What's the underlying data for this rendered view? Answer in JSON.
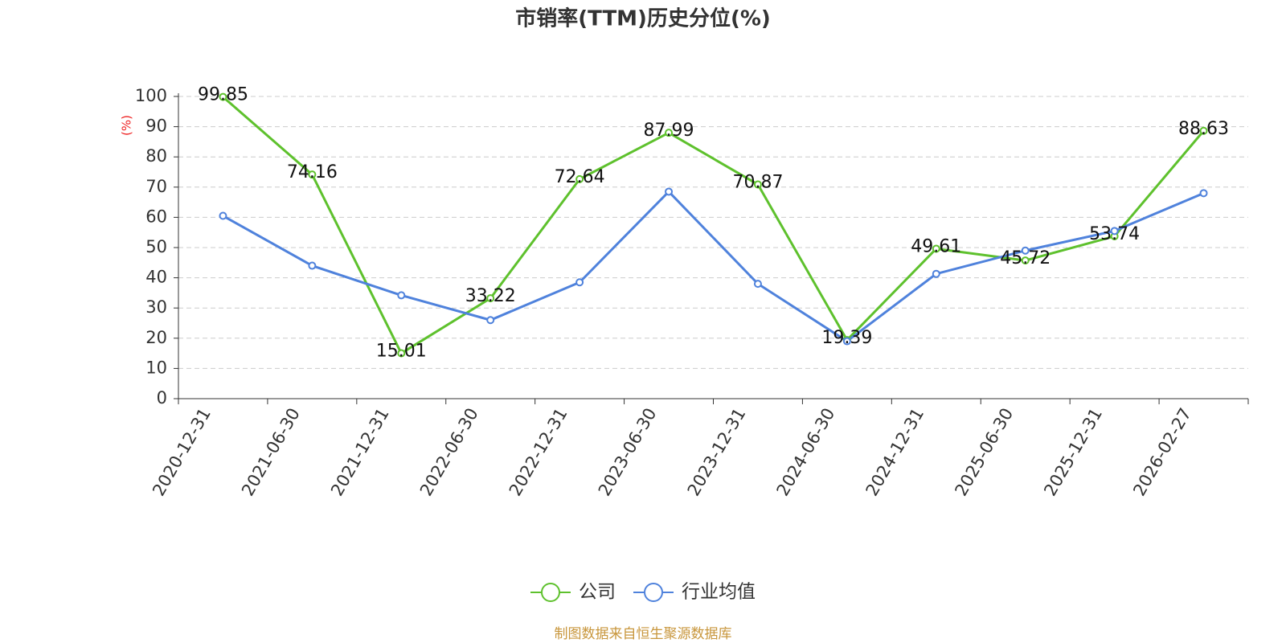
{
  "chart_data": {
    "type": "line",
    "title": "市销率(TTM)历史分位(%)",
    "y_axis_label": "(%)",
    "source": "制图数据来自恒生聚源数据库",
    "categories": [
      "2020-12-31",
      "2021-06-30",
      "2021-12-31",
      "2022-06-30",
      "2022-12-31",
      "2023-06-30",
      "2023-12-31",
      "2024-06-30",
      "2024-12-31",
      "2025-06-30",
      "2025-12-31",
      "2026-02-27"
    ],
    "series": [
      {
        "name": "公司",
        "color": "#5ec12d",
        "data_labels": true,
        "values": [
          99.85,
          74.16,
          15.01,
          33.22,
          72.64,
          87.99,
          70.87,
          19.39,
          49.61,
          45.72,
          53.74,
          88.63
        ]
      },
      {
        "name": "行业均值",
        "color": "#4f82dc",
        "values": [
          60.5,
          44,
          34.2,
          26,
          38.5,
          68.5,
          38,
          19,
          41.3,
          49,
          55.5,
          68
        ]
      }
    ],
    "ylim": [
      0,
      100
    ],
    "yticks": [
      0,
      10,
      20,
      30,
      40,
      50,
      60,
      70,
      80,
      90,
      100
    ],
    "grid": true
  }
}
